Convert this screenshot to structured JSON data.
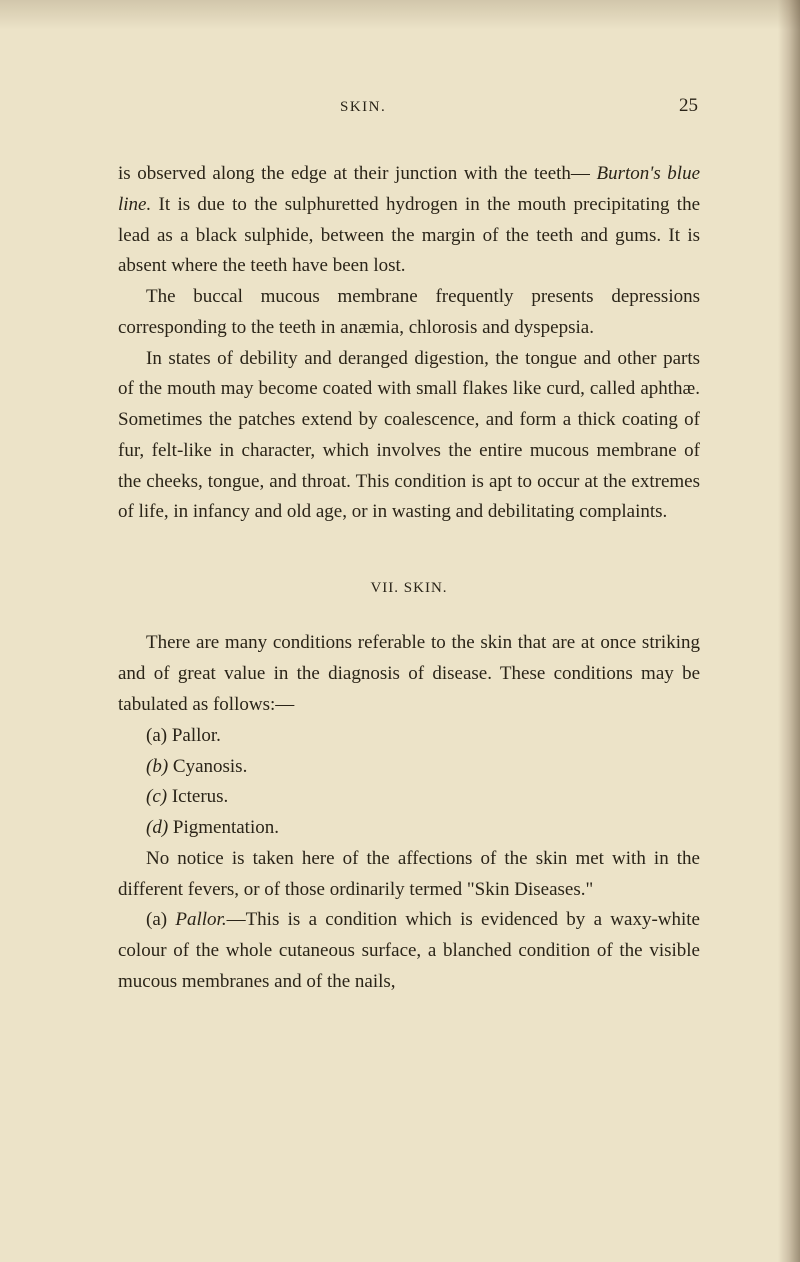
{
  "header": {
    "title": "SKIN.",
    "pageNumber": "25"
  },
  "paragraphs": {
    "p1": "is observed along the edge at their junction with the teeth—",
    "p1_italic": "Burton's blue line.",
    "p1_cont": " It is due to the sulphuretted hydrogen in the mouth precipitating the lead as a black sulphide, between the margin of the teeth and gums. It is absent where the teeth have been lost.",
    "p2": "The buccal mucous membrane frequently presents depressions corresponding to the teeth in anæmia, chlorosis and dyspepsia.",
    "p3": "In states of debility and deranged digestion, the tongue and other parts of the mouth may become coated with small flakes like curd, called aphthæ. Sometimes the patches extend by coalescence, and form a thick coating of fur, felt-like in character, which involves the entire mucous membrane of the cheeks, tongue, and throat. This condition is apt to occur at the extremes of life, in infancy and old age, or in wasting and debilitating complaints.",
    "sectionHeading": "VII. SKIN.",
    "p4": "There are many conditions referable to the skin that are at once striking and of great value in the diagnosis of disease. These conditions may be tabulated as follows:—",
    "listA_label": "(a)",
    "listA_text": " Pallor.",
    "listB_label": "(b)",
    "listB_text": " Cyanosis.",
    "listC_label": "(c)",
    "listC_text": " Icterus.",
    "listD_label": "(d)",
    "listD_text": " Pigmentation.",
    "p5": "No notice is taken here of the affections of the skin met with in the different fevers, or of those ordinarily termed \"Skin Diseases.\"",
    "p6_label": "(a)",
    "p6_italic": " Pallor.",
    "p6_text": "—This is a condition which is evidenced by a waxy-white colour of the whole cutaneous surface, a blanched condition of the visible mucous membranes and of the nails,"
  },
  "colors": {
    "pageBackground": "#ece3c8",
    "textColor": "#2a2418"
  }
}
